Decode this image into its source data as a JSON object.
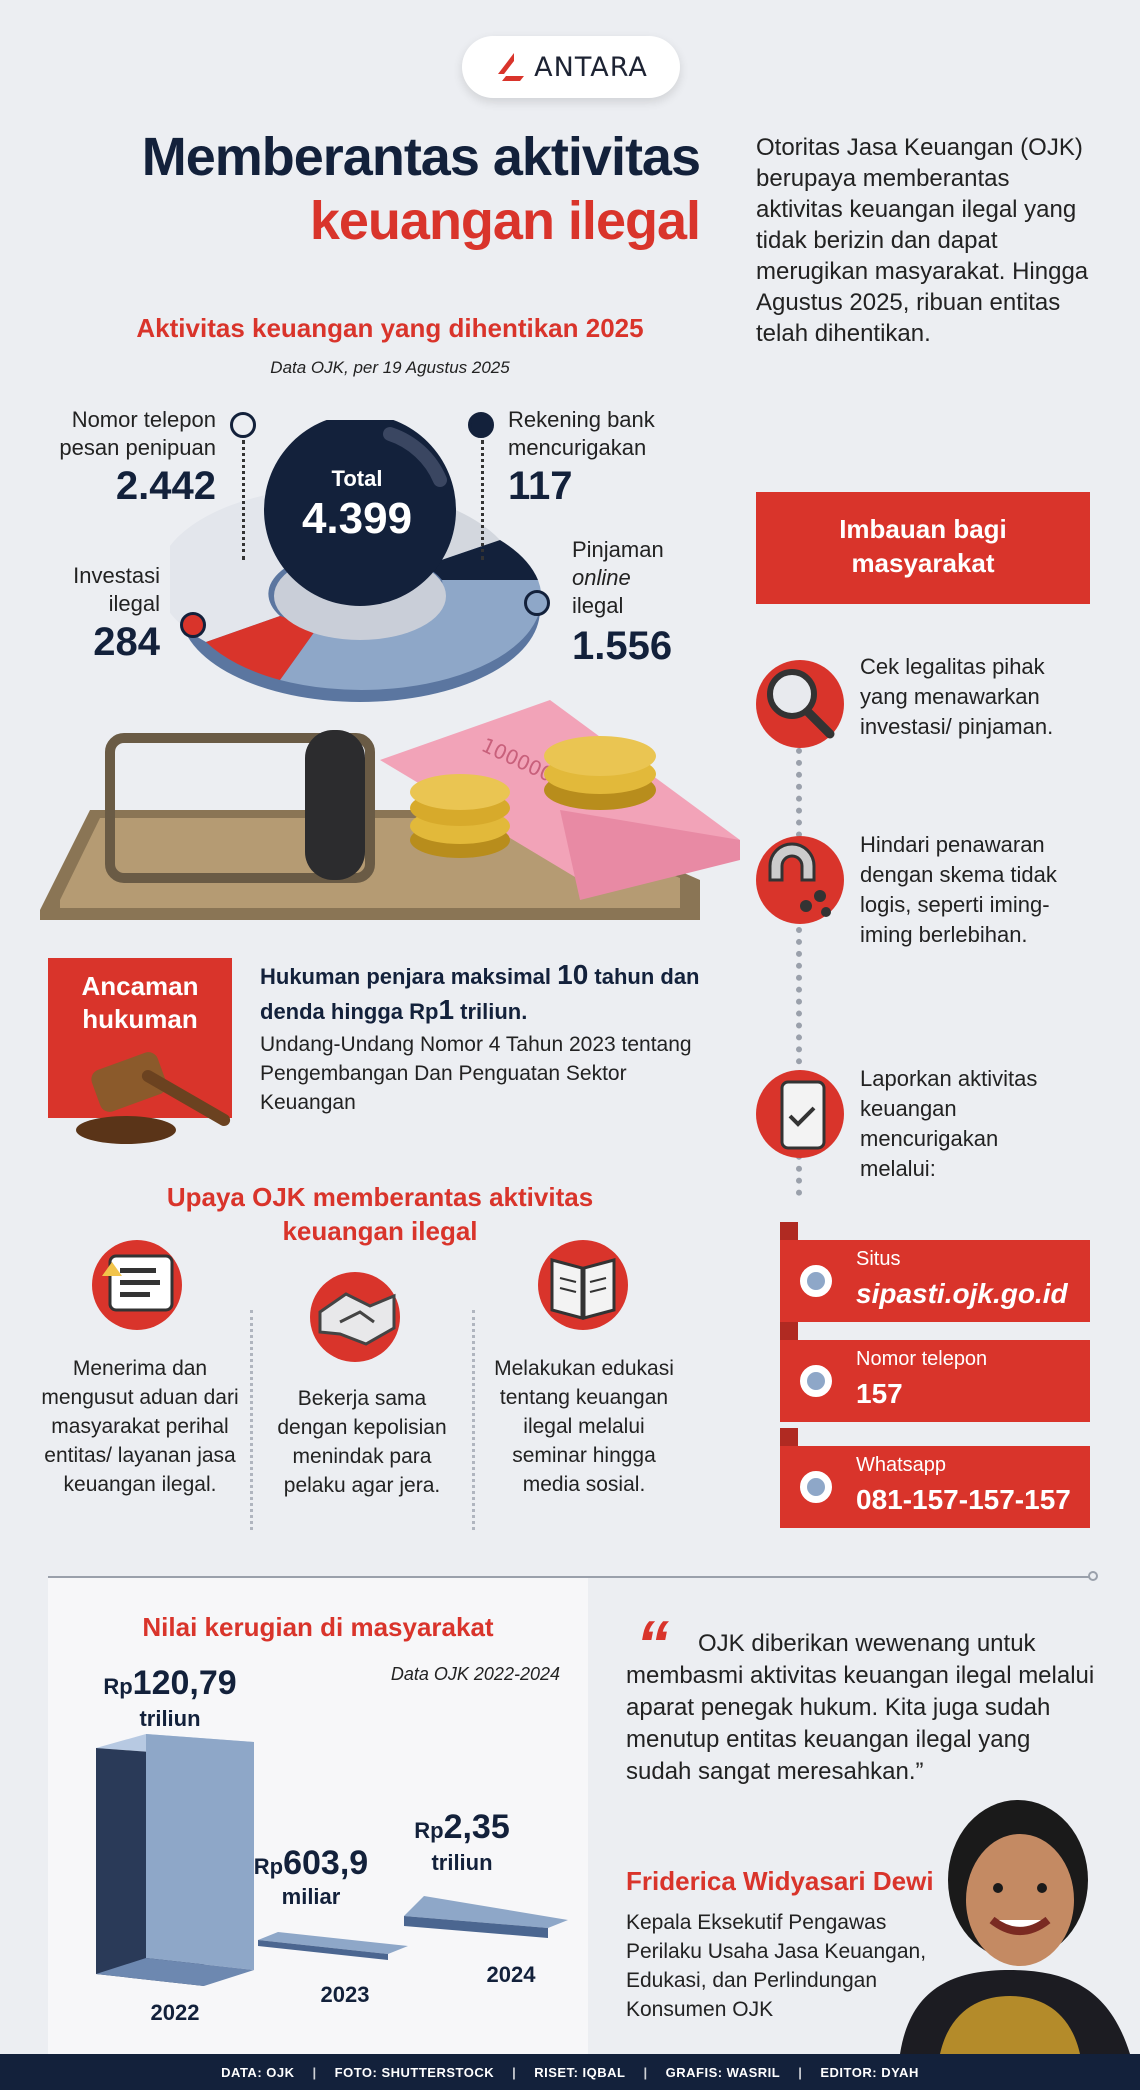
{
  "brand": {
    "name": "ANTARA",
    "icon": "antara-logo-icon",
    "accent": "#d9342b"
  },
  "title": {
    "line1": "Memberantas aktivitas",
    "line2": "keuangan ilegal"
  },
  "intro": "Otoritas Jasa Keuangan (OJK) berupaya memberantas aktivitas keuangan ilegal yang tidak berizin dan dapat merugikan masyarakat. Hingga Agustus 2025, ribuan entitas telah dihentikan.",
  "activity": {
    "title": "Aktivitas keuangan yang dihentikan 2025",
    "subtitle": "Data OJK, per 19 Agustus 2025",
    "total_label": "Total",
    "total_value": "4.399",
    "segments": [
      {
        "label_line1": "Nomor telepon",
        "label_line2": "pesan penipuan",
        "value": "2.442",
        "color": "#dfe2e8"
      },
      {
        "label_line1": "Rekening bank",
        "label_line2": "mencurigakan",
        "value": "117",
        "color": "#13213b"
      },
      {
        "label_line1": "Pinjaman",
        "label_italic": "online",
        "label_line3": "ilegal",
        "value": "1.556",
        "color": "#8ea7c8"
      },
      {
        "label_line1": "Investasi",
        "label_line2": "ilegal",
        "value": "284",
        "color": "#d9342b"
      }
    ],
    "banknote_text": "100000"
  },
  "threat": {
    "label": "Ancaman hukuman",
    "icon": "gavel-icon",
    "headline_pre": "Hukuman penjara maksimal ",
    "headline_num": "10",
    "headline_mid": " tahun dan denda hingga Rp",
    "headline_num2": "1",
    "headline_post": " triliun.",
    "law": "Undang-Undang Nomor 4 Tahun 2023 tentang Pengembangan Dan Penguatan Sektor Keuangan"
  },
  "efforts": {
    "title_line1": "Upaya OJK memberantas aktivitas",
    "title_line2": "keuangan ilegal",
    "items": [
      {
        "icon": "complaint-chat-icon",
        "text": "Menerima dan mengusut aduan dari masyarakat perihal entitas/ layanan jasa keuangan ilegal."
      },
      {
        "icon": "handshake-icon",
        "text": "Bekerja sama dengan kepolisian menindak para pelaku agar jera."
      },
      {
        "icon": "book-icon",
        "text": "Melakukan edukasi tentang keuangan ilegal melalui seminar hingga media sosial."
      }
    ]
  },
  "advice": {
    "title_line1": "Imbauan bagi",
    "title_line2": "masyarakat",
    "steps": [
      {
        "icon": "magnifier-icon",
        "text": "Cek legalitas pihak yang menawarkan investasi/ pinjaman."
      },
      {
        "icon": "magnet-icon",
        "text": "Hindari penawaran dengan skema tidak logis, seperti iming-iming berlebihan."
      },
      {
        "icon": "phone-report-icon",
        "text": "Laporkan aktivitas keuangan mencurigakan melalui:"
      }
    ],
    "contacts": [
      {
        "label": "Situs",
        "value": "sipasti.ojk.go.id",
        "italic": true
      },
      {
        "label": "Nomor telepon",
        "value": "157"
      },
      {
        "label": "Whatsapp",
        "value": "081-157-157-157"
      }
    ]
  },
  "losses": {
    "title": "Nilai kerugian di masyarakat",
    "subtitle": "Data OJK 2022-2024",
    "bars": [
      {
        "year": "2022",
        "rp": "Rp",
        "value": "120,79",
        "unit": "triliun",
        "amount_trillion": 120.79
      },
      {
        "year": "2023",
        "rp": "Rp",
        "value": "603,9",
        "unit": "miliar",
        "amount_trillion": 0.6039
      },
      {
        "year": "2024",
        "rp": "Rp",
        "value": "2,35",
        "unit": "triliun",
        "amount_trillion": 2.35
      }
    ]
  },
  "quote": {
    "mark": "“",
    "text": "OJK diberikan wewenang untuk membasmi aktivitas keuangan ilegal melalui aparat penegak hukum. Kita juga sudah menutup entitas keuangan ilegal yang sudah sangat meresahkan.”",
    "name": "Friderica Widyasari Dewi",
    "role": "Kepala Eksekutif Pengawas Perilaku Usaha Jasa Keuangan, Edukasi, dan Perlindungan Konsumen OJK"
  },
  "footer": {
    "data": "DATA: OJK",
    "photo": "FOTO: SHUTTERSTOCK",
    "research": "RISET: IQBAL",
    "graphics": "GRAFIS: WASRIL",
    "editor": "EDITOR: DYAH",
    "separator": "|"
  }
}
